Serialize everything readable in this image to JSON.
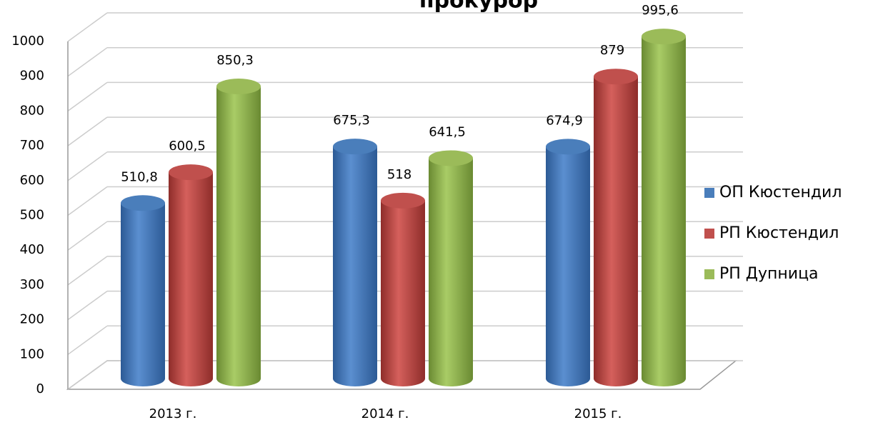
{
  "chart_data": {
    "type": "bar3d",
    "title": "прокурор",
    "categories": [
      "2013 г.",
      "2014 г.",
      "2015 г."
    ],
    "series": [
      {
        "name": "ОП Кюстендил",
        "color": "#4a7ebb",
        "values": [
          510.8,
          675.3,
          674.9
        ],
        "value_labels": [
          "510,8",
          "675,3",
          "674,9"
        ]
      },
      {
        "name": "РП Кюстендил",
        "color": "#c0504d",
        "values": [
          600.5,
          518,
          879
        ],
        "value_labels": [
          "600,5",
          "518",
          "879"
        ]
      },
      {
        "name": "РП Дупница",
        "color": "#9bbb59",
        "values": [
          850.3,
          641.5,
          995.6
        ],
        "value_labels": [
          "850,3",
          "641,5",
          "995,6"
        ]
      }
    ],
    "ylim": [
      0,
      1000
    ],
    "yticks": [
      0,
      100,
      200,
      300,
      400,
      500,
      600,
      700,
      800,
      900,
      1000
    ],
    "grid": true,
    "legend": "right"
  }
}
